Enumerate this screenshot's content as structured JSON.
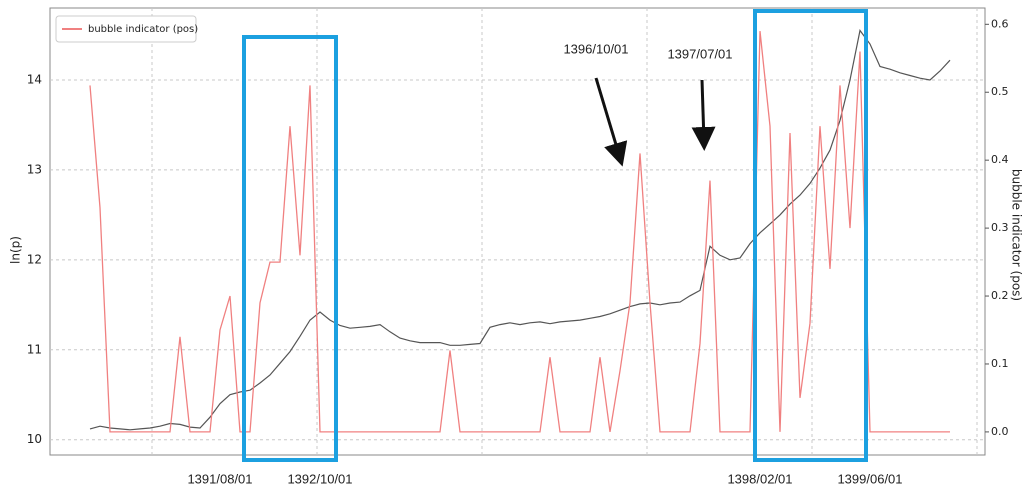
{
  "chart_data": {
    "type": "line",
    "x": [
      null,
      null,
      null,
      null,
      null,
      null,
      null,
      null,
      null,
      null,
      null,
      null,
      null,
      "1391/08/01",
      null,
      null,
      null,
      null,
      null,
      null,
      null,
      null,
      null,
      "1392/10/01",
      null,
      null,
      null,
      null,
      null,
      null,
      null,
      null,
      null,
      null,
      null,
      null,
      null,
      null,
      null,
      null,
      null,
      null,
      null,
      null,
      null,
      null,
      null,
      null,
      null,
      null,
      null,
      null,
      null,
      null,
      null,
      null,
      null,
      null,
      null,
      null,
      null,
      null,
      null,
      null,
      null,
      null,
      null,
      "1398/02/01",
      null,
      null,
      null,
      null,
      null,
      null,
      null,
      null,
      null,
      null,
      "1399/06/01",
      null,
      null,
      null,
      null,
      null,
      null,
      null,
      null
    ],
    "series": [
      {
        "color": "#555555",
        "values": [
          10.12,
          10.15,
          10.13,
          10.12,
          10.11,
          10.12,
          10.13,
          10.15,
          10.18,
          10.17,
          10.14,
          10.13,
          10.25,
          10.4,
          10.5,
          10.53,
          10.55,
          10.63,
          10.72,
          10.85,
          10.98,
          11.15,
          11.33,
          11.42,
          11.33,
          11.27,
          11.24,
          11.25,
          11.26,
          11.28,
          11.2,
          11.13,
          11.1,
          11.08,
          11.08,
          11.08,
          11.05,
          11.05,
          11.06,
          11.07,
          11.25,
          11.28,
          11.3,
          11.28,
          11.3,
          11.31,
          11.29,
          11.31,
          11.32,
          11.33,
          11.35,
          11.37,
          11.4,
          11.44,
          11.48,
          11.51,
          11.52,
          11.5,
          11.52,
          11.53,
          11.6,
          11.66,
          12.15,
          12.05,
          12.0,
          12.02,
          12.18,
          12.3,
          12.4,
          12.5,
          12.62,
          12.72,
          12.85,
          13.02,
          13.22,
          13.55,
          14.0,
          14.55,
          14.4,
          14.15,
          14.12,
          14.08,
          14.05,
          14.02,
          14.0,
          14.1,
          14.22
        ]
      },
      {
        "name": "bubble indicator (pos)",
        "color": "#f08080",
        "axis": "y2",
        "values": [
          0.51,
          0.33,
          0,
          0,
          0,
          0,
          0,
          0,
          0,
          0.14,
          0,
          0,
          0,
          0.15,
          0.2,
          0,
          0,
          0.19,
          0.25,
          0.25,
          0.45,
          0.26,
          0.51,
          0,
          0,
          0,
          0,
          0,
          0,
          0,
          0,
          0,
          0,
          0,
          0,
          0,
          0.12,
          0,
          0,
          0,
          0,
          0,
          0,
          0,
          0,
          0,
          0.11,
          0,
          0,
          0,
          0,
          0.11,
          0,
          0.09,
          0.19,
          0.41,
          0.19,
          0,
          0,
          0,
          0,
          0.13,
          0.37,
          0,
          0,
          0,
          0,
          0.59,
          0.45,
          0,
          0.44,
          0.05,
          0.16,
          0.45,
          0.24,
          0.51,
          0.3,
          0.56,
          0,
          0,
          0,
          0,
          0,
          0,
          0,
          0,
          0
        ]
      }
    ],
    "y_label": "ln(p)",
    "y2_label": "bubble indicator (pos)",
    "ylim": [
      9.83,
      14.8
    ],
    "yticks": [
      10,
      11,
      12,
      13,
      14
    ],
    "y2lim": [
      -0.034,
      0.624
    ],
    "y2ticks": [
      {
        "value": 0,
        "label": "0.0"
      },
      0.1,
      0.2,
      0.3,
      0.4,
      0.5,
      0.6
    ],
    "grid": true,
    "legend": "upper-left",
    "annotations": [
      "1396/10/01",
      "1397/07/01"
    ]
  }
}
